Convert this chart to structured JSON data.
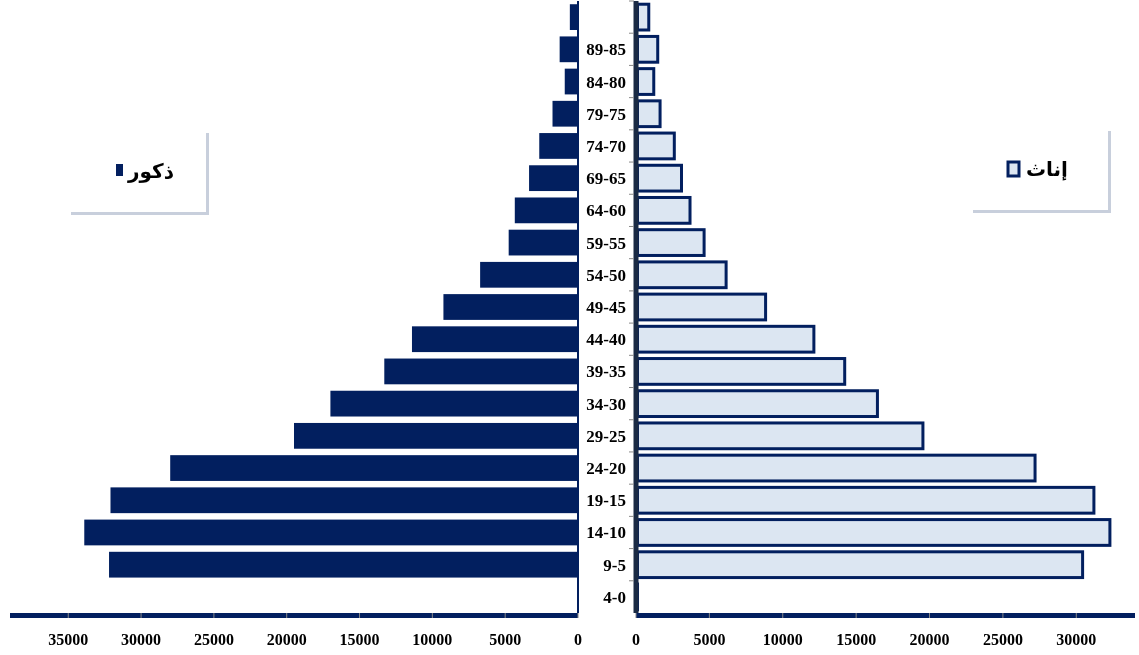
{
  "chart_data": [
    {
      "type": "bar",
      "orientation": "horizontal",
      "categories": [
        null,
        "89-85",
        "84-80",
        "79-75",
        "74-70",
        "69-65",
        "64-60",
        "59-55",
        "54-50",
        "49-45",
        "44-40",
        "39-35",
        "34-30",
        "29-25",
        "24-20",
        "19-15",
        "14-10",
        "9-5",
        "4-0"
      ],
      "series": [
        {
          "name": "ذكور",
          "color": "#021f5f",
          "values": [
            560,
            1260,
            910,
            1750,
            2660,
            3360,
            4340,
            4760,
            6720,
            9240,
            11400,
            13300,
            17000,
            19500,
            28000,
            32100,
            33900,
            32200,
            null
          ]
        }
      ],
      "xlim": [
        39000,
        0
      ],
      "xticks": [
        35000,
        30000,
        25000,
        20000,
        15000,
        10000,
        5000,
        0
      ],
      "legend": "left"
    },
    {
      "type": "bar",
      "orientation": "horizontal",
      "series": [
        {
          "name": "إناث",
          "color": "#dce6f2",
          "values": [
            870,
            1480,
            1210,
            1640,
            2610,
            3100,
            3680,
            4640,
            6140,
            8830,
            12120,
            14220,
            16450,
            19550,
            27190,
            31200,
            32290,
            30430,
            0
          ]
        }
      ],
      "xlim": [
        0,
        34000
      ],
      "xticks": [
        0,
        5000,
        10000,
        15000,
        20000,
        25000,
        30000
      ],
      "legend": "right",
      "tick_labels": "x"
    }
  ]
}
